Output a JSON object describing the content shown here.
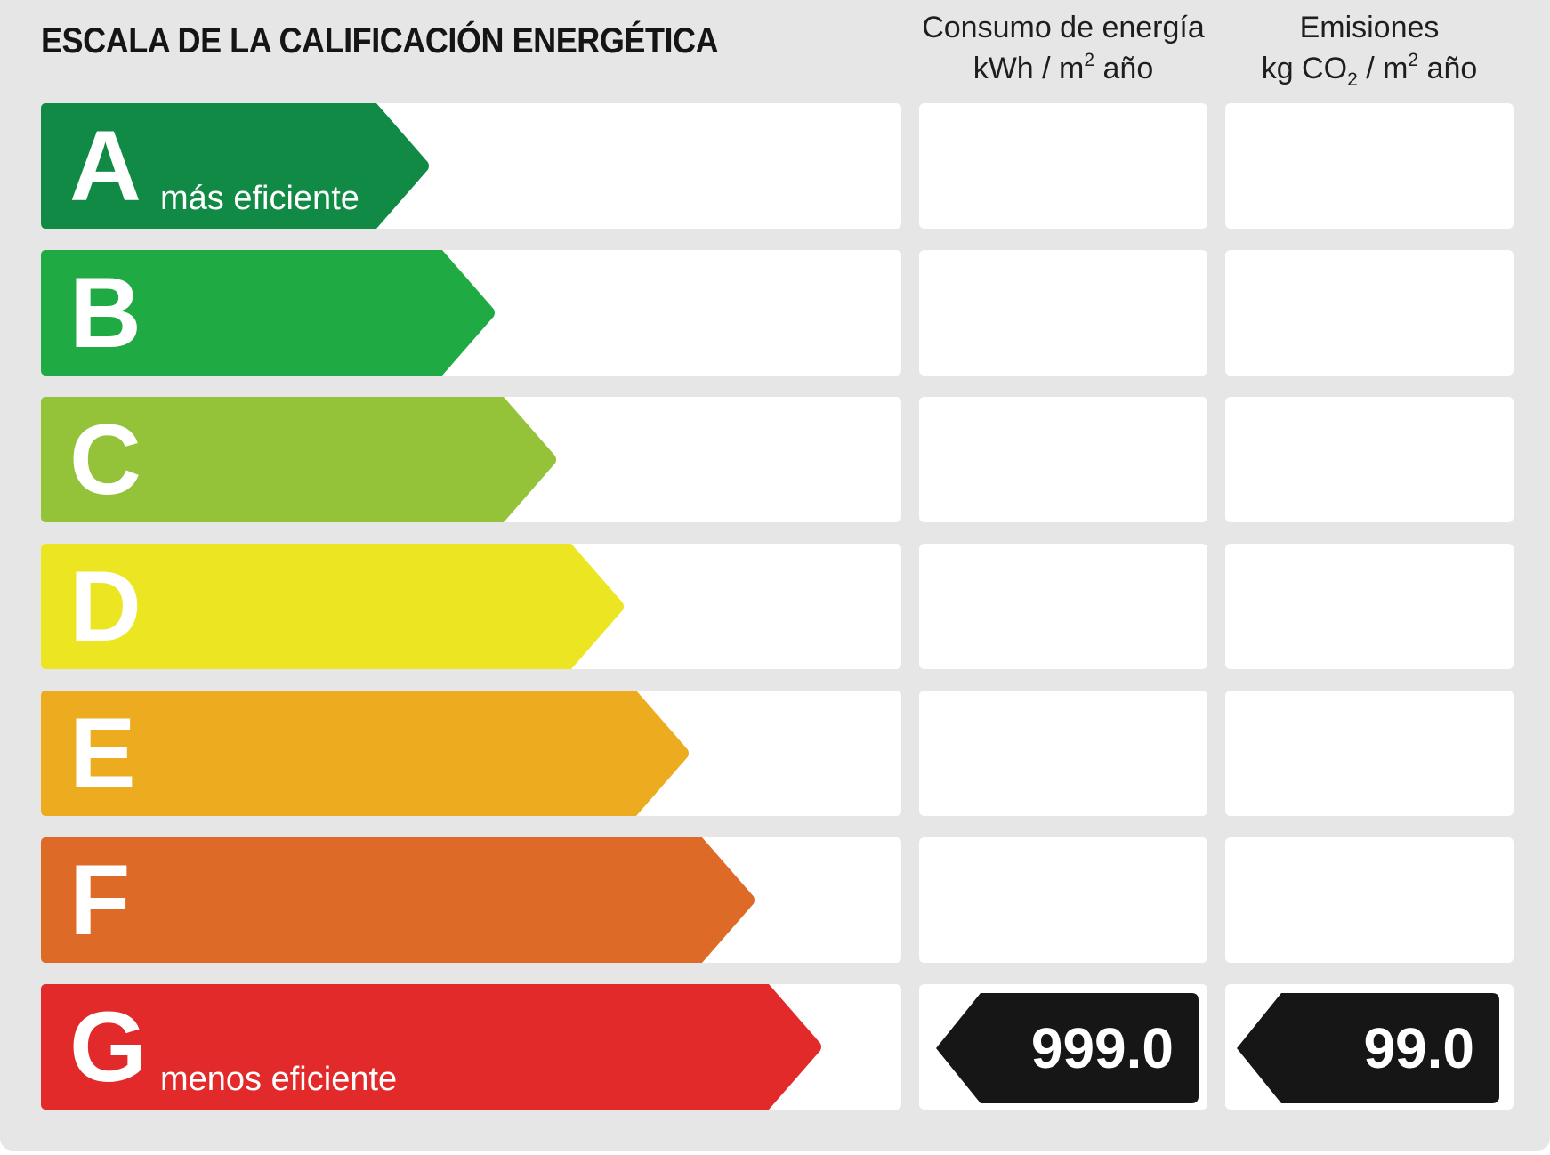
{
  "title": "ESCALA DE LA CALIFICACIÓN ENERGÉTICA",
  "columns": {
    "energy": {
      "line1": "Consumo de energía",
      "line2_a": "kWh / m",
      "line2_sup": "2",
      "line2_b": " año"
    },
    "emissions": {
      "line1": "Emisiones",
      "line2_a": "kg CO",
      "line2_sub": "2",
      "line2_b": " / m",
      "line2_sup": "2",
      "line2_c": " año"
    }
  },
  "ratings": [
    {
      "letter": "A",
      "label": "más eficiente",
      "color": "#108a44"
    },
    {
      "letter": "B",
      "label": "",
      "color": "#20aa43"
    },
    {
      "letter": "C",
      "label": "",
      "color": "#94c33a"
    },
    {
      "letter": "D",
      "label": "",
      "color": "#ece622"
    },
    {
      "letter": "E",
      "label": "",
      "color": "#edac20"
    },
    {
      "letter": "F",
      "label": "",
      "color": "#dd6b27"
    },
    {
      "letter": "G",
      "label": "menos eficiente",
      "color": "#e12a29"
    }
  ],
  "result": {
    "rating": "G",
    "energy_value": "999.0",
    "emissions_value": "99.0",
    "tag_color": "#161616"
  }
}
